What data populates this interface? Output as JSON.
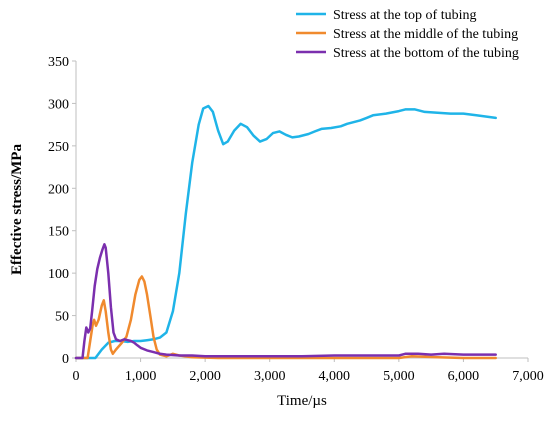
{
  "chart_data": {
    "type": "line",
    "title": "",
    "xlabel": "Time/µs",
    "ylabel": "Effective stress/MPa",
    "xlim": [
      0,
      7000
    ],
    "ylim": [
      0,
      350
    ],
    "x_ticks": [
      0,
      1000,
      2000,
      3000,
      4000,
      5000,
      6000,
      7000
    ],
    "x_tick_labels": [
      "0",
      "1,000",
      "2,000",
      "3,000",
      "4,000",
      "5,000",
      "6,000",
      "7,000"
    ],
    "y_ticks": [
      0,
      50,
      100,
      150,
      200,
      250,
      300,
      350
    ],
    "y_tick_labels": [
      "0",
      "50",
      "100",
      "150",
      "200",
      "250",
      "300",
      "350"
    ],
    "grid": false,
    "legend_position": "top-right",
    "series": [
      {
        "name": "Stress at the top of tubing",
        "color": "#1fb4e8",
        "points": [
          [
            0,
            0
          ],
          [
            300,
            0
          ],
          [
            400,
            10
          ],
          [
            500,
            18
          ],
          [
            600,
            20
          ],
          [
            700,
            20
          ],
          [
            800,
            19
          ],
          [
            900,
            20
          ],
          [
            1000,
            20
          ],
          [
            1100,
            21
          ],
          [
            1200,
            22
          ],
          [
            1300,
            24
          ],
          [
            1400,
            30
          ],
          [
            1500,
            55
          ],
          [
            1600,
            100
          ],
          [
            1700,
            170
          ],
          [
            1800,
            230
          ],
          [
            1900,
            275
          ],
          [
            1970,
            294
          ],
          [
            2050,
            297
          ],
          [
            2120,
            290
          ],
          [
            2200,
            268
          ],
          [
            2280,
            252
          ],
          [
            2350,
            255
          ],
          [
            2450,
            268
          ],
          [
            2550,
            276
          ],
          [
            2650,
            272
          ],
          [
            2750,
            262
          ],
          [
            2850,
            255
          ],
          [
            2950,
            258
          ],
          [
            3050,
            265
          ],
          [
            3150,
            267
          ],
          [
            3250,
            263
          ],
          [
            3350,
            260
          ],
          [
            3450,
            261
          ],
          [
            3600,
            264
          ],
          [
            3700,
            267
          ],
          [
            3800,
            270
          ],
          [
            3950,
            271
          ],
          [
            4100,
            273
          ],
          [
            4200,
            276
          ],
          [
            4400,
            280
          ],
          [
            4500,
            283
          ],
          [
            4600,
            286
          ],
          [
            4800,
            288
          ],
          [
            5000,
            291
          ],
          [
            5100,
            293
          ],
          [
            5250,
            293
          ],
          [
            5400,
            290
          ],
          [
            5600,
            289
          ],
          [
            5800,
            288
          ],
          [
            6000,
            288
          ],
          [
            6200,
            286
          ],
          [
            6400,
            284
          ],
          [
            6500,
            283
          ]
        ]
      },
      {
        "name": "Stress at the middle of the tubing",
        "color": "#f08a2e",
        "points": [
          [
            0,
            0
          ],
          [
            100,
            0
          ],
          [
            180,
            0
          ],
          [
            220,
            20
          ],
          [
            260,
            40
          ],
          [
            280,
            45
          ],
          [
            310,
            38
          ],
          [
            350,
            45
          ],
          [
            400,
            62
          ],
          [
            430,
            68
          ],
          [
            460,
            55
          ],
          [
            500,
            30
          ],
          [
            540,
            10
          ],
          [
            570,
            5
          ],
          [
            620,
            10
          ],
          [
            700,
            17
          ],
          [
            780,
            25
          ],
          [
            850,
            45
          ],
          [
            920,
            75
          ],
          [
            980,
            92
          ],
          [
            1020,
            96
          ],
          [
            1060,
            90
          ],
          [
            1100,
            75
          ],
          [
            1150,
            50
          ],
          [
            1200,
            25
          ],
          [
            1250,
            10
          ],
          [
            1300,
            4
          ],
          [
            1400,
            2
          ],
          [
            1500,
            5
          ],
          [
            1600,
            3
          ],
          [
            1800,
            1
          ],
          [
            2200,
            0
          ],
          [
            3000,
            0
          ],
          [
            4000,
            0
          ],
          [
            5000,
            0
          ],
          [
            5200,
            2
          ],
          [
            5600,
            1
          ],
          [
            6000,
            0
          ],
          [
            6500,
            0
          ]
        ]
      },
      {
        "name": "Stress at the bottom of the tubing",
        "color": "#7b2fae",
        "points": [
          [
            0,
            0
          ],
          [
            100,
            0
          ],
          [
            130,
            20
          ],
          [
            160,
            36
          ],
          [
            190,
            30
          ],
          [
            220,
            35
          ],
          [
            250,
            55
          ],
          [
            290,
            85
          ],
          [
            330,
            105
          ],
          [
            370,
            118
          ],
          [
            410,
            128
          ],
          [
            440,
            134
          ],
          [
            460,
            130
          ],
          [
            500,
            100
          ],
          [
            540,
            60
          ],
          [
            580,
            30
          ],
          [
            620,
            22
          ],
          [
            680,
            20
          ],
          [
            750,
            22
          ],
          [
            800,
            21
          ],
          [
            850,
            20
          ],
          [
            900,
            18
          ],
          [
            950,
            15
          ],
          [
            1000,
            12
          ],
          [
            1100,
            9
          ],
          [
            1200,
            7
          ],
          [
            1300,
            5
          ],
          [
            1400,
            4
          ],
          [
            1600,
            3
          ],
          [
            1800,
            3
          ],
          [
            2000,
            2
          ],
          [
            2500,
            2
          ],
          [
            3000,
            2
          ],
          [
            3500,
            2
          ],
          [
            4000,
            3
          ],
          [
            4500,
            3
          ],
          [
            5000,
            3
          ],
          [
            5100,
            5
          ],
          [
            5300,
            5
          ],
          [
            5500,
            4
          ],
          [
            5700,
            5
          ],
          [
            6000,
            4
          ],
          [
            6300,
            4
          ],
          [
            6500,
            4
          ]
        ]
      }
    ]
  }
}
